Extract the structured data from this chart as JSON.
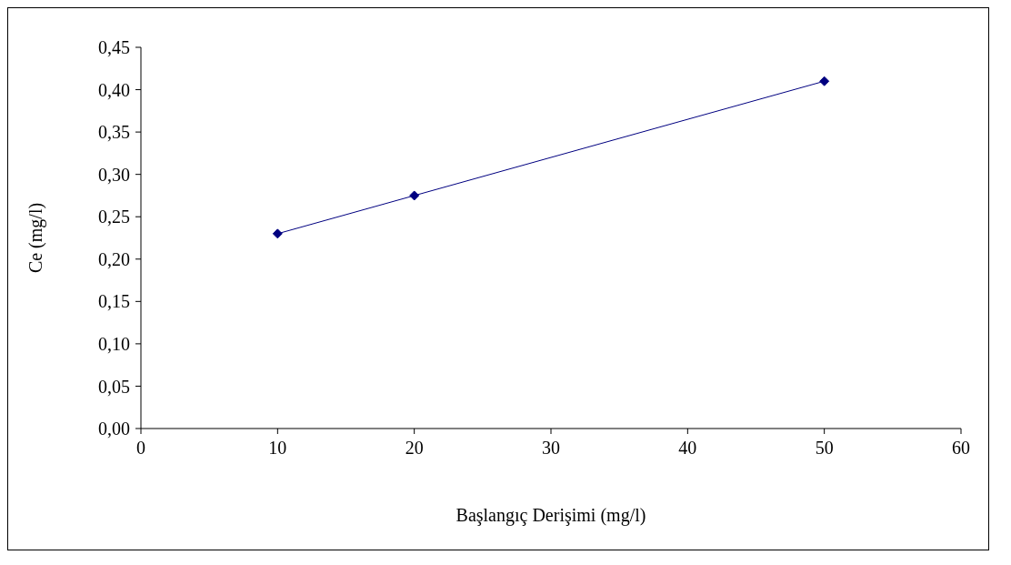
{
  "chart_data": {
    "type": "line",
    "xlabel": "Başlangıç Derişimi (mg/l)",
    "ylabel": "Ce (mg/l)",
    "x": [
      10,
      20,
      50
    ],
    "series": [
      {
        "color": "#000080",
        "values": [
          0.23,
          0.275,
          0.41
        ]
      }
    ],
    "xlim": [
      0,
      60
    ],
    "xticks": [
      0,
      10,
      20,
      30,
      40,
      50,
      60
    ],
    "ylim": [
      0,
      0.45
    ],
    "yticks": [
      {
        "value": 0,
        "label": "0,00"
      },
      {
        "value": 0.05,
        "label": "0,05"
      },
      {
        "value": 0.1,
        "label": "0,10"
      },
      {
        "value": 0.15,
        "label": "0,15"
      },
      {
        "value": 0.2,
        "label": "0,20"
      },
      {
        "value": 0.25,
        "label": "0,25"
      },
      {
        "value": 0.3,
        "label": "0,30"
      },
      {
        "value": 0.35,
        "label": "0,35"
      },
      {
        "value": 0.4,
        "label": "0,40"
      },
      {
        "value": 0.45,
        "label": "0,45"
      }
    ],
    "grid": false,
    "legend": false,
    "marker": "diamond",
    "line_style": "solid"
  }
}
